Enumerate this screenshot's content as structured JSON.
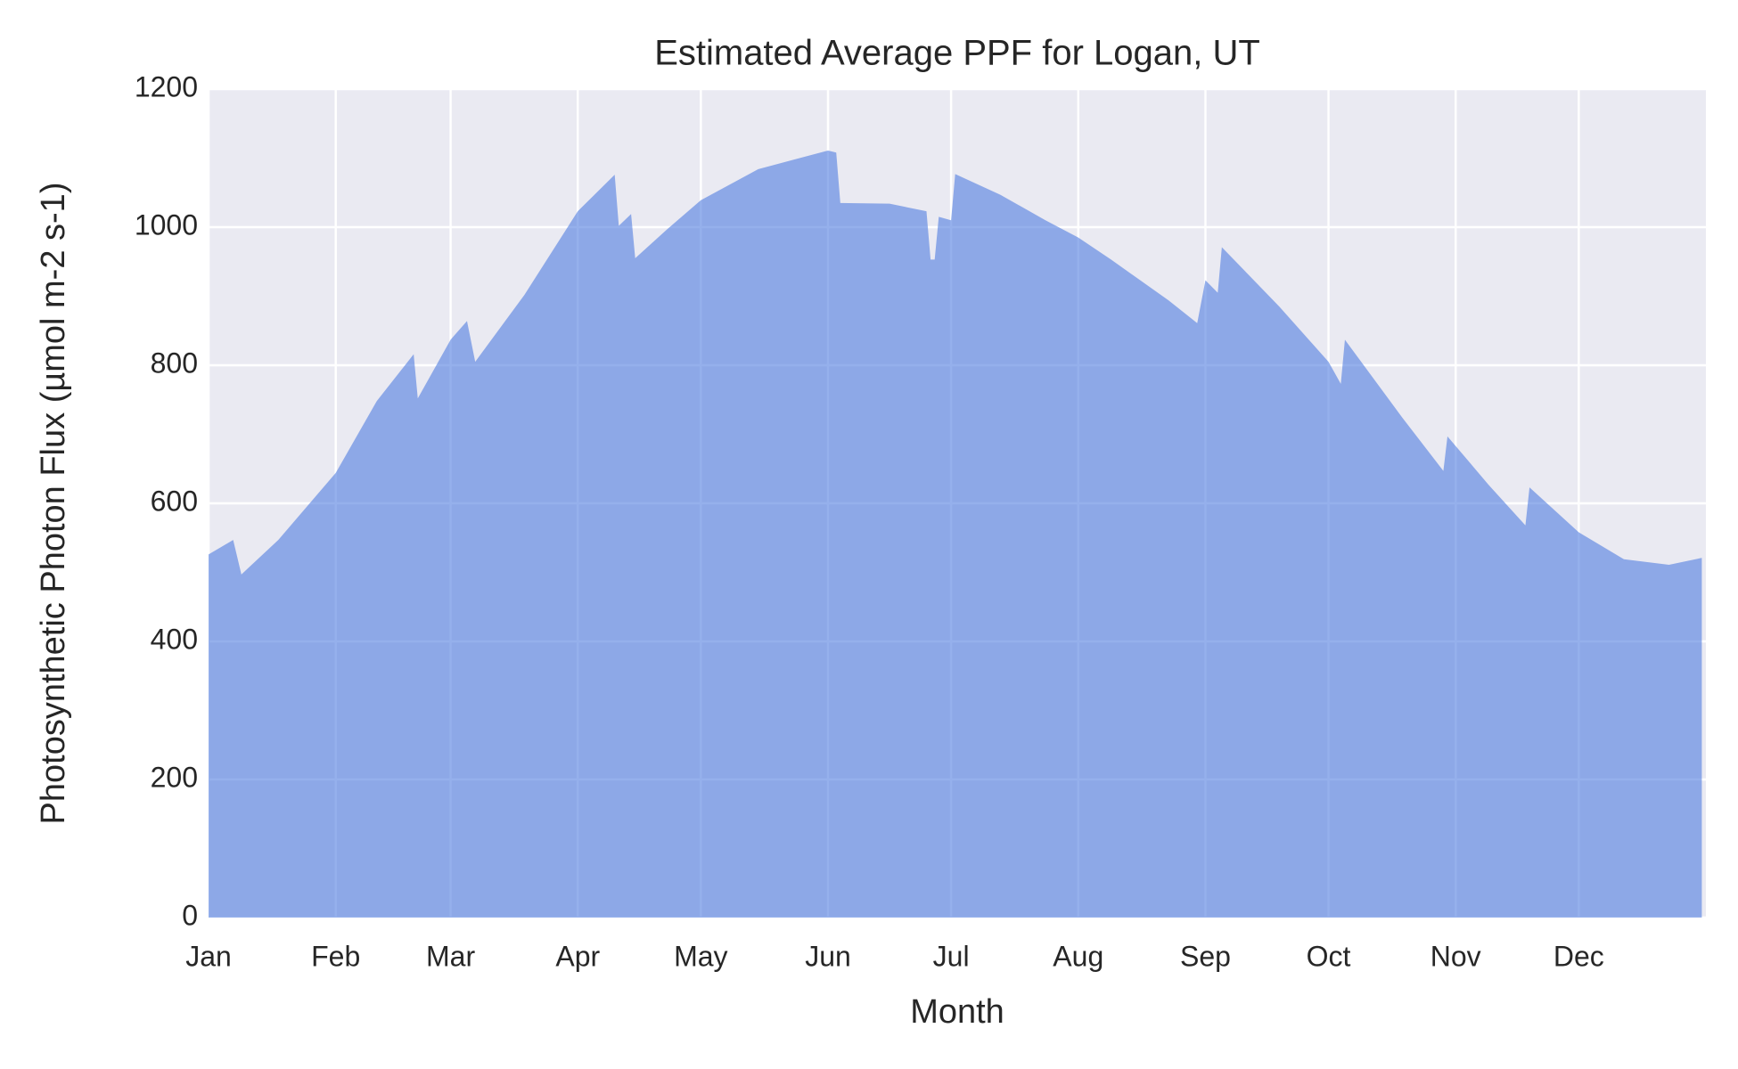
{
  "chart_data": {
    "type": "area",
    "title": "Estimated Average PPF for Logan, UT",
    "xlabel": "Month",
    "ylabel": "Photosynthetic Photon Flux (µmol m-2 s-1)",
    "series": [
      {
        "color": "#4f7be0",
        "x": [
          0,
          6,
          8,
          17,
          31,
          41,
          50,
          51,
          59,
          63,
          65,
          77,
          90,
          99,
          100,
          103,
          104,
          112,
          120,
          134,
          151,
          153,
          154,
          166,
          175,
          176,
          177,
          178,
          181,
          182,
          193,
          204,
          212,
          220,
          234,
          241,
          243,
          246,
          247,
          261,
          273,
          276,
          277,
          291,
          301,
          302,
          312,
          321,
          322,
          334,
          345,
          356,
          364
        ],
        "values": [
          526,
          547,
          497,
          547,
          644,
          748,
          816,
          752,
          837,
          864,
          805,
          902,
          1023,
          1076,
          1002,
          1019,
          955,
          998,
          1039,
          1084,
          1111,
          1108,
          1035,
          1034,
          1023,
          953,
          953,
          1015,
          1010,
          1077,
          1047,
          1010,
          985,
          953,
          894,
          861,
          923,
          905,
          971,
          885,
          805,
          773,
          837,
          724,
          647,
          697,
          627,
          568,
          623,
          558,
          519,
          511,
          521
        ]
      }
    ],
    "xlim": [
      0,
      365
    ],
    "xticks": [
      {
        "value": 0,
        "label": "Jan"
      },
      {
        "value": 31,
        "label": "Feb"
      },
      {
        "value": 59,
        "label": "Mar"
      },
      {
        "value": 90,
        "label": "Apr"
      },
      {
        "value": 120,
        "label": "May"
      },
      {
        "value": 151,
        "label": "Jun"
      },
      {
        "value": 181,
        "label": "Jul"
      },
      {
        "value": 212,
        "label": "Aug"
      },
      {
        "value": 243,
        "label": "Sep"
      },
      {
        "value": 273,
        "label": "Oct"
      },
      {
        "value": 304,
        "label": "Nov"
      },
      {
        "value": 334,
        "label": "Dec"
      }
    ],
    "ylim": [
      0,
      1200
    ],
    "yticks": [
      0,
      200,
      400,
      600,
      800,
      1000,
      1200
    ],
    "grid": true
  }
}
